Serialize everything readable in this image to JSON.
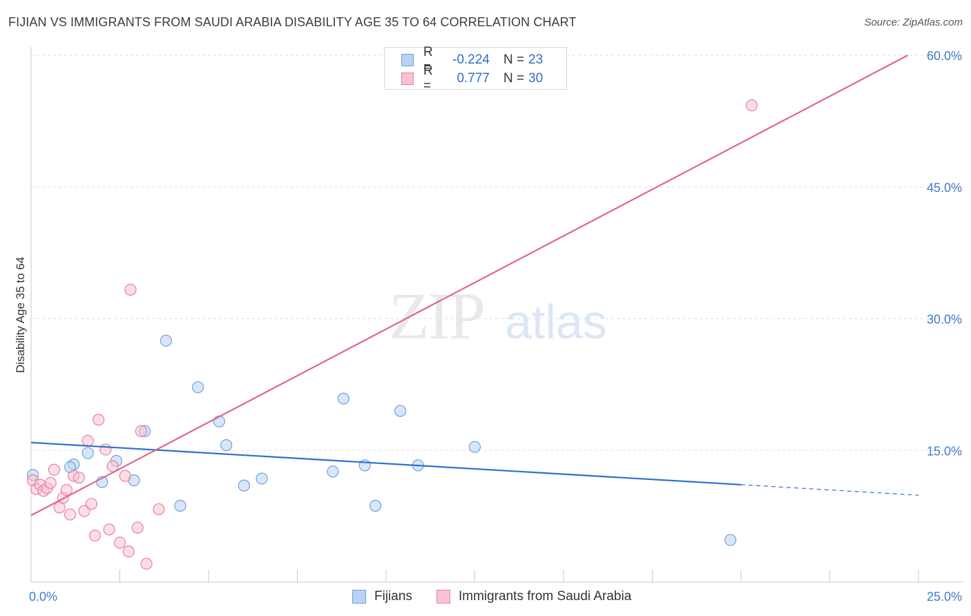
{
  "title": "FIJIAN VS IMMIGRANTS FROM SAUDI ARABIA DISABILITY AGE 35 TO 64 CORRELATION CHART",
  "source": "Source: ZipAtlas.com",
  "watermark": {
    "zip": "ZIP",
    "atlas": "atlas"
  },
  "legend": {
    "rows": [
      {
        "r_label": "R =",
        "r_value": "-0.224",
        "n_label": "N =",
        "n_value": "23",
        "fill": "#b8d3f3",
        "stroke": "#6fa0dc"
      },
      {
        "r_label": "R =",
        "r_value": "0.777",
        "n_label": "N =",
        "n_value": "30",
        "fill": "#f8c3d4",
        "stroke": "#e7819f"
      }
    ]
  },
  "bottom_legend": [
    {
      "label": "Fijians",
      "fill": "#b8d3f3",
      "stroke": "#6fa0dc"
    },
    {
      "label": "Immigrants from Saudi Arabia",
      "fill": "#f8c3d4",
      "stroke": "#e7819f"
    }
  ],
  "chart_data": {
    "type": "scatter",
    "title": "FIJIAN VS IMMIGRANTS FROM SAUDI ARABIA DISABILITY AGE 35 TO 64 CORRELATION CHART",
    "xlabel": "",
    "ylabel": "Disability Age 35 to 64",
    "xlim": [
      0,
      25
    ],
    "ylim": [
      0,
      60
    ],
    "x_tick_labels": [
      {
        "value": 0,
        "label": "0.0%"
      },
      {
        "value": 25,
        "label": "25.0%"
      }
    ],
    "y_tick_labels": [
      {
        "value": 15,
        "label": "15.0%"
      },
      {
        "value": 30,
        "label": "30.0%"
      },
      {
        "value": 45,
        "label": "45.0%"
      },
      {
        "value": 60,
        "label": "60.0%"
      }
    ],
    "grid": true,
    "series": [
      {
        "name": "Fijians",
        "color": "#6fa0dc",
        "fill": "#b8d3f3",
        "trend_color": "#2f6fd0",
        "trend": {
          "x0": 0,
          "y0": 15.9,
          "x1": 20,
          "y1": 11.1,
          "x_ext": 25,
          "y_ext": 9.9
        },
        "points": [
          {
            "x": 0.05,
            "y": 12.2
          },
          {
            "x": 1.2,
            "y": 13.4
          },
          {
            "x": 1.1,
            "y": 13.1
          },
          {
            "x": 1.6,
            "y": 14.7
          },
          {
            "x": 2.0,
            "y": 11.4
          },
          {
            "x": 2.4,
            "y": 13.8
          },
          {
            "x": 2.9,
            "y": 11.6
          },
          {
            "x": 3.2,
            "y": 17.2
          },
          {
            "x": 3.8,
            "y": 27.5
          },
          {
            "x": 4.2,
            "y": 8.7
          },
          {
            "x": 4.7,
            "y": 22.2
          },
          {
            "x": 5.3,
            "y": 18.3
          },
          {
            "x": 5.5,
            "y": 15.6
          },
          {
            "x": 6.0,
            "y": 11.0
          },
          {
            "x": 6.5,
            "y": 11.8
          },
          {
            "x": 8.5,
            "y": 12.6
          },
          {
            "x": 8.8,
            "y": 20.9
          },
          {
            "x": 9.4,
            "y": 13.3
          },
          {
            "x": 9.7,
            "y": 8.7
          },
          {
            "x": 10.4,
            "y": 19.5
          },
          {
            "x": 10.9,
            "y": 13.3
          },
          {
            "x": 12.5,
            "y": 15.4
          },
          {
            "x": 19.7,
            "y": 4.8
          }
        ]
      },
      {
        "name": "Immigrants from Saudi Arabia",
        "color": "#e7819f",
        "fill": "#f8c3d4",
        "trend_color": "#e2648e",
        "trend": {
          "x0": 0,
          "y0": 7.6,
          "x1": 24.7,
          "y1": 60.0
        },
        "points": [
          {
            "x": 0.05,
            "y": 11.6
          },
          {
            "x": 0.15,
            "y": 10.6
          },
          {
            "x": 0.25,
            "y": 11.1
          },
          {
            "x": 0.35,
            "y": 10.4
          },
          {
            "x": 0.45,
            "y": 10.7
          },
          {
            "x": 0.55,
            "y": 11.3
          },
          {
            "x": 0.65,
            "y": 12.8
          },
          {
            "x": 0.8,
            "y": 8.5
          },
          {
            "x": 0.9,
            "y": 9.6
          },
          {
            "x": 1.0,
            "y": 10.5
          },
          {
            "x": 1.1,
            "y": 7.7
          },
          {
            "x": 1.2,
            "y": 12.1
          },
          {
            "x": 1.35,
            "y": 11.9
          },
          {
            "x": 1.5,
            "y": 8.1
          },
          {
            "x": 1.6,
            "y": 16.1
          },
          {
            "x": 1.7,
            "y": 8.9
          },
          {
            "x": 1.8,
            "y": 5.3
          },
          {
            "x": 1.9,
            "y": 18.5
          },
          {
            "x": 2.1,
            "y": 15.1
          },
          {
            "x": 2.2,
            "y": 6.0
          },
          {
            "x": 2.3,
            "y": 13.2
          },
          {
            "x": 2.5,
            "y": 4.5
          },
          {
            "x": 2.65,
            "y": 12.1
          },
          {
            "x": 2.75,
            "y": 3.5
          },
          {
            "x": 2.8,
            "y": 33.3
          },
          {
            "x": 3.0,
            "y": 6.2
          },
          {
            "x": 3.1,
            "y": 17.2
          },
          {
            "x": 3.25,
            "y": 2.1
          },
          {
            "x": 3.6,
            "y": 8.3
          },
          {
            "x": 20.3,
            "y": 54.3
          }
        ]
      }
    ]
  }
}
